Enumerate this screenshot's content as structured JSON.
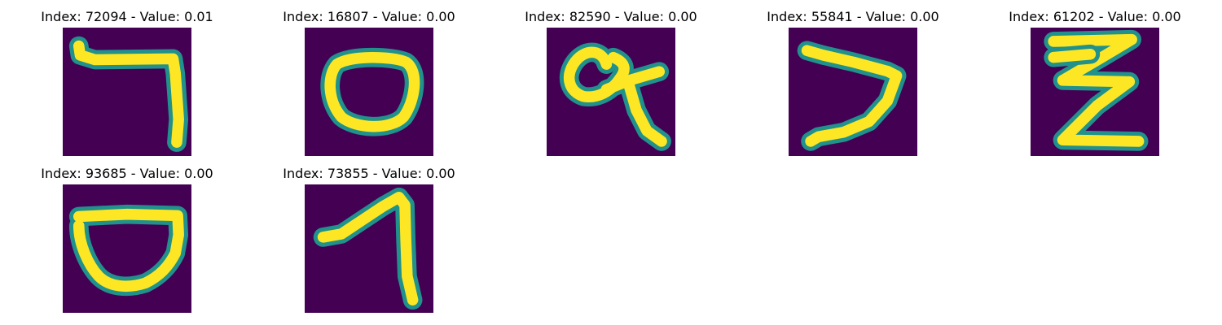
{
  "colormap": {
    "background": "#440154",
    "mid": "#21918c",
    "stroke": "#fde725"
  },
  "panels": [
    {
      "title": "Index: 72094 - Value: 0.01"
    },
    {
      "title": "Index: 16807 - Value: 0.00"
    },
    {
      "title": "Index: 82590 - Value: 0.00"
    },
    {
      "title": "Index: 55841 - Value: 0.00"
    },
    {
      "title": "Index: 61202 - Value: 0.00"
    },
    {
      "title": "Index: 93685 - Value: 0.00"
    },
    {
      "title": "Index: 73855 - Value: 0.00"
    }
  ]
}
